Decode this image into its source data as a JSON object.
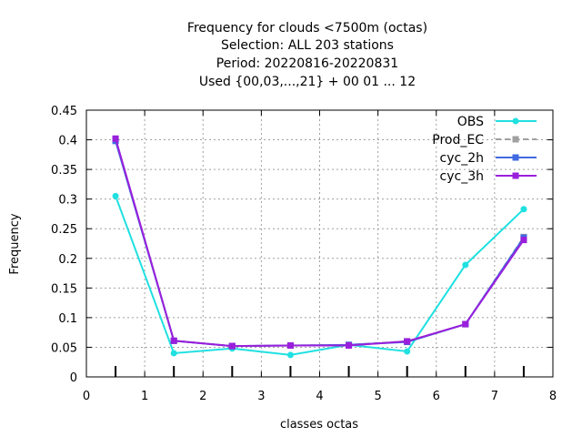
{
  "chart_data": {
    "type": "line",
    "title_lines": [
      "Frequency  for clouds <7500m (octas)",
      "Selection: ALL    203 stations",
      "Period: 20220816-20220831",
      "Used {00,03,...,21} + 00 01 ... 12"
    ],
    "xlabel": "classes octas",
    "ylabel": "Frequency",
    "xlim": [
      0,
      8
    ],
    "ylim": [
      0,
      0.45
    ],
    "xticks": [
      "0",
      "1",
      "2",
      "3",
      "4",
      "5",
      "6",
      "7",
      "8"
    ],
    "yticks": [
      "0",
      "0.05",
      "0.1",
      "0.15",
      "0.2",
      "0.25",
      "0.3",
      "0.35",
      "0.4",
      "0.45"
    ],
    "grid": true,
    "legend_position": "top-right",
    "x": [
      0.5,
      1.5,
      2.5,
      3.5,
      4.5,
      5.5,
      6.5,
      7.5
    ],
    "series": [
      {
        "name": "OBS",
        "color": "#20e0e0",
        "dash": "solid",
        "marker": "circle",
        "values": [
          0.305,
          0.04,
          0.048,
          0.037,
          0.054,
          0.043,
          0.189,
          0.283
        ]
      },
      {
        "name": "Prod_EC",
        "color": "#a0a0a0",
        "dash": "dashed",
        "marker": "square",
        "values": [
          0.401,
          0.061,
          0.052,
          0.053,
          0.054,
          0.06,
          0.089,
          0.236
        ]
      },
      {
        "name": "cyc_2h",
        "color": "#4169e1",
        "dash": "solid",
        "marker": "square",
        "values": [
          0.398,
          0.061,
          0.052,
          0.053,
          0.054,
          0.059,
          0.089,
          0.235
        ]
      },
      {
        "name": "cyc_3h",
        "color": "#9a1fdc",
        "dash": "solid",
        "marker": "square",
        "values": [
          0.402,
          0.061,
          0.052,
          0.053,
          0.053,
          0.06,
          0.089,
          0.231
        ]
      }
    ]
  }
}
